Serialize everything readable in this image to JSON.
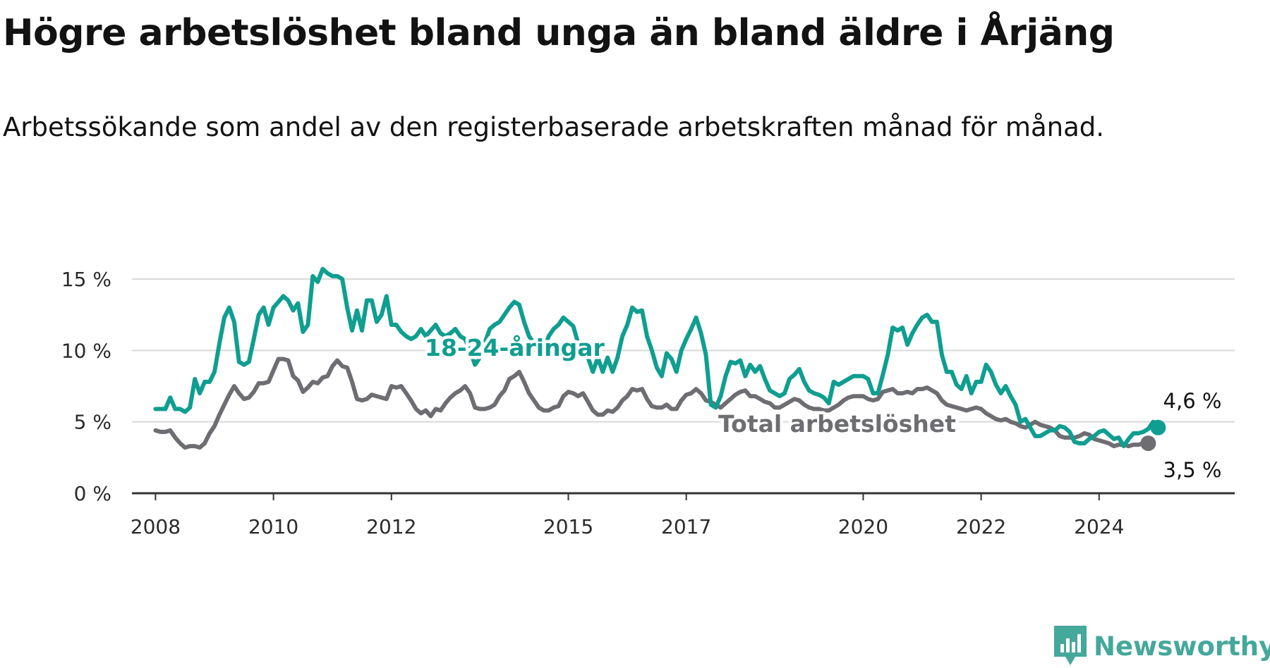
{
  "title": "Högre arbetslöshet bland unga än bland äldre i Årjäng",
  "subtitle": "Arbetssökande som andel av den registerbaserade arbetskraften månad för månad.",
  "branding": {
    "name": "Newsworthy",
    "icon": "newsworthy-chart-icon",
    "color": "#44a89a"
  },
  "chart_data": {
    "type": "line",
    "x_start": "2008-01",
    "x_interval": "month",
    "xlim": [
      2007.6,
      2026.3
    ],
    "ylim": [
      0,
      15
    ],
    "y_ticks": [
      0,
      5,
      10,
      15
    ],
    "y_tick_labels": [
      "0 %",
      "5 %",
      "10 %",
      "15 %"
    ],
    "x_ticks": [
      2008,
      2010,
      2012,
      2015,
      2017,
      2020,
      2022,
      2024
    ],
    "x_tick_labels": [
      "2008",
      "2010",
      "2012",
      "2015",
      "2017",
      "2020",
      "2022",
      "2024"
    ],
    "grid": "horizontal",
    "series": [
      {
        "name": "18-24-åringar",
        "color": "#0f9e90",
        "end_label": "4,6 %",
        "values": [
          5.9,
          5.9,
          5.9,
          6.7,
          5.9,
          5.9,
          5.7,
          6.0,
          8.0,
          7.0,
          7.8,
          7.8,
          8.5,
          10.5,
          12.3,
          13.0,
          12.0,
          9.2,
          9.0,
          9.2,
          10.8,
          12.5,
          13.0,
          11.8,
          13.0,
          13.4,
          13.8,
          13.5,
          12.8,
          13.3,
          11.3,
          11.8,
          15.2,
          14.8,
          15.7,
          15.4,
          15.2,
          15.2,
          15.0,
          13.0,
          11.4,
          12.8,
          11.4,
          13.5,
          13.5,
          12.0,
          12.5,
          13.8,
          11.8,
          11.8,
          11.3,
          11.0,
          10.8,
          11.0,
          11.5,
          11.0,
          11.4,
          11.8,
          11.2,
          11.0,
          11.2,
          11.5,
          11.0,
          10.8,
          10.0,
          9.0,
          9.5,
          10.5,
          11.5,
          11.8,
          12.0,
          12.5,
          13.0,
          13.4,
          13.2,
          12.0,
          11.0,
          10.5,
          10.2,
          10.0,
          11.0,
          11.5,
          11.8,
          12.3,
          12.0,
          11.7,
          10.5,
          10.2,
          9.5,
          8.5,
          9.5,
          8.5,
          9.5,
          8.5,
          9.5,
          11.0,
          11.8,
          13.0,
          12.7,
          12.8,
          11.0,
          10.0,
          8.8,
          8.2,
          9.8,
          9.4,
          8.5,
          10.0,
          10.8,
          11.5,
          12.3,
          11.2,
          9.7,
          6.2,
          6.0,
          6.8,
          8.2,
          9.2,
          9.1,
          9.3,
          8.2,
          9.0,
          8.5,
          8.9,
          8.0,
          7.2,
          7.0,
          6.8,
          7.0,
          8.0,
          8.3,
          8.7,
          7.8,
          7.2,
          7.0,
          6.9,
          6.7,
          6.3,
          7.8,
          7.6,
          7.8,
          8.0,
          8.2,
          8.2,
          8.2,
          8.0,
          7.0,
          7.0,
          8.3,
          9.7,
          11.6,
          11.4,
          11.6,
          10.4,
          11.2,
          11.8,
          12.3,
          12.5,
          12.0,
          12.0,
          9.7,
          8.5,
          8.5,
          7.6,
          7.3,
          8.2,
          7.0,
          7.8,
          7.8,
          9.0,
          8.5,
          7.6,
          7.0,
          7.5,
          6.8,
          6.2,
          5.0,
          5.2,
          4.6,
          4.0,
          4.0,
          4.2,
          4.4,
          4.4,
          4.7,
          4.6,
          4.3,
          3.6,
          3.5,
          3.5,
          3.8,
          4.0,
          4.3,
          4.4,
          4.1,
          3.8,
          3.9,
          3.3,
          3.8,
          4.2,
          4.2,
          4.3,
          4.5,
          5.0,
          4.6
        ]
      },
      {
        "name": "Total arbetslöshet",
        "color": "#6e6d72",
        "end_label": "3,5 %",
        "values": [
          4.4,
          4.3,
          4.3,
          4.4,
          3.9,
          3.5,
          3.2,
          3.3,
          3.3,
          3.2,
          3.5,
          4.2,
          4.7,
          5.5,
          6.2,
          6.9,
          7.5,
          7.0,
          6.6,
          6.7,
          7.1,
          7.7,
          7.7,
          7.8,
          8.6,
          9.4,
          9.4,
          9.3,
          8.2,
          7.9,
          7.1,
          7.4,
          7.8,
          7.7,
          8.1,
          8.2,
          8.9,
          9.3,
          8.9,
          8.8,
          7.8,
          6.6,
          6.5,
          6.6,
          6.9,
          6.8,
          6.7,
          6.6,
          7.5,
          7.4,
          7.5,
          7.0,
          6.5,
          5.9,
          5.6,
          5.8,
          5.4,
          5.9,
          5.8,
          6.3,
          6.7,
          7.0,
          7.2,
          7.5,
          7.0,
          6.0,
          5.9,
          5.9,
          6.0,
          6.2,
          6.8,
          7.2,
          8.0,
          8.2,
          8.5,
          7.8,
          7.0,
          6.5,
          6.0,
          5.8,
          5.8,
          6.0,
          6.1,
          6.8,
          7.1,
          7.0,
          6.8,
          7.0,
          6.4,
          5.8,
          5.5,
          5.5,
          5.8,
          5.7,
          6.0,
          6.5,
          6.8,
          7.3,
          7.2,
          7.3,
          6.6,
          6.1,
          6.0,
          6.0,
          6.2,
          5.9,
          5.9,
          6.5,
          6.9,
          7.0,
          7.3,
          7.0,
          6.5,
          6.4,
          6.2,
          6.0,
          6.3,
          6.6,
          6.9,
          7.1,
          7.2,
          6.8,
          6.8,
          6.6,
          6.4,
          6.3,
          6.0,
          6.0,
          6.2,
          6.4,
          6.6,
          6.5,
          6.2,
          6.0,
          5.9,
          5.9,
          5.8,
          5.8,
          6.0,
          6.2,
          6.5,
          6.7,
          6.8,
          6.8,
          6.8,
          6.6,
          6.5,
          6.6,
          7.1,
          7.2,
          7.3,
          7.0,
          7.0,
          7.1,
          7.0,
          7.3,
          7.3,
          7.4,
          7.2,
          7.0,
          6.5,
          6.2,
          6.1,
          6.0,
          5.9,
          5.8,
          5.9,
          6.0,
          5.9,
          5.6,
          5.4,
          5.2,
          5.1,
          5.2,
          5.0,
          4.9,
          4.7,
          4.6,
          4.8,
          5.0,
          4.8,
          4.7,
          4.6,
          4.4,
          4.0,
          3.9,
          3.9,
          3.9,
          4.0,
          4.2,
          4.1,
          3.8,
          3.7,
          3.6,
          3.5,
          3.3,
          3.4,
          3.4,
          3.3,
          3.4,
          3.4,
          3.5,
          3.5
        ]
      }
    ]
  }
}
